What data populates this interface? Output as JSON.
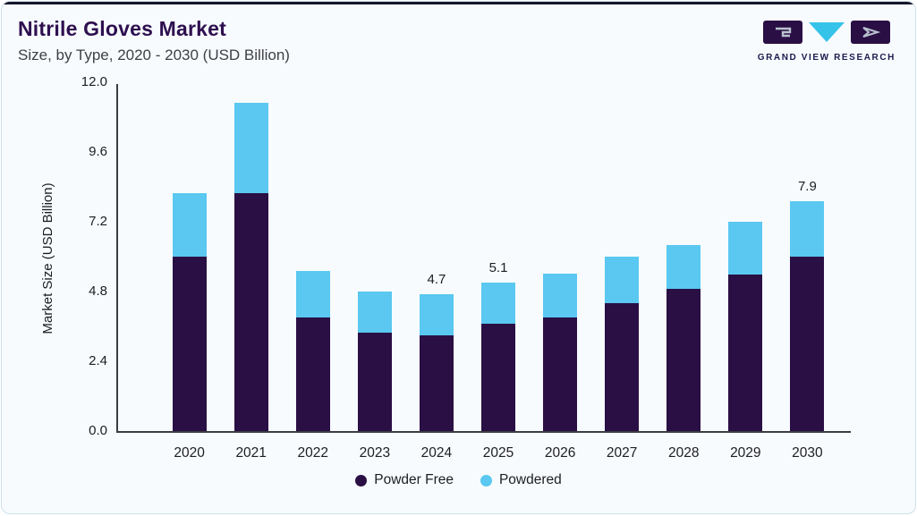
{
  "header": {
    "title": "Nitrile Gloves Market",
    "subtitle": "Size, by Type, 2020 - 2030 (USD Billion)",
    "logo_text": "GRAND VIEW RESEARCH"
  },
  "colors": {
    "powder_free": "#2a0f45",
    "powdered": "#5ac8f0",
    "title": "#2e0f4f",
    "top_accent": "#14162b"
  },
  "chart_data": {
    "type": "bar",
    "stacked": true,
    "title": "Nitrile Gloves Market Size, by Type, 2020 - 2030 (USD Billion)",
    "xlabel": "",
    "ylabel": "Market Size (USD Billion)",
    "ylim": [
      0,
      12
    ],
    "grid": false,
    "legend_position": "bottom",
    "categories": [
      "2020",
      "2021",
      "2022",
      "2023",
      "2024",
      "2025",
      "2026",
      "2027",
      "2028",
      "2029",
      "2030"
    ],
    "series": [
      {
        "name": "Powder Free",
        "color": "#2a0f45",
        "values": [
          6.0,
          8.2,
          3.9,
          3.4,
          3.3,
          3.7,
          3.9,
          4.4,
          4.9,
          5.4,
          6.0
        ]
      },
      {
        "name": "Powdered",
        "color": "#5ac8f0",
        "values": [
          2.2,
          3.1,
          1.6,
          1.4,
          1.4,
          1.4,
          1.5,
          1.6,
          1.5,
          1.8,
          1.9
        ]
      }
    ],
    "totals": [
      8.2,
      11.3,
      5.5,
      4.8,
      4.7,
      5.1,
      5.4,
      6.0,
      6.4,
      7.2,
      7.9
    ],
    "bar_labels": [
      null,
      null,
      null,
      null,
      "4.7",
      "5.1",
      null,
      null,
      null,
      null,
      "7.9"
    ],
    "yticks": [
      {
        "label": "0.0",
        "value": 0
      },
      {
        "label": "2.4",
        "value": 2.4
      },
      {
        "label": "4.8",
        "value": 4.8
      },
      {
        "label": "7.2",
        "value": 7.2
      },
      {
        "label": "9.6",
        "value": 9.6
      },
      {
        "label": "12.0",
        "value": 12
      }
    ]
  }
}
